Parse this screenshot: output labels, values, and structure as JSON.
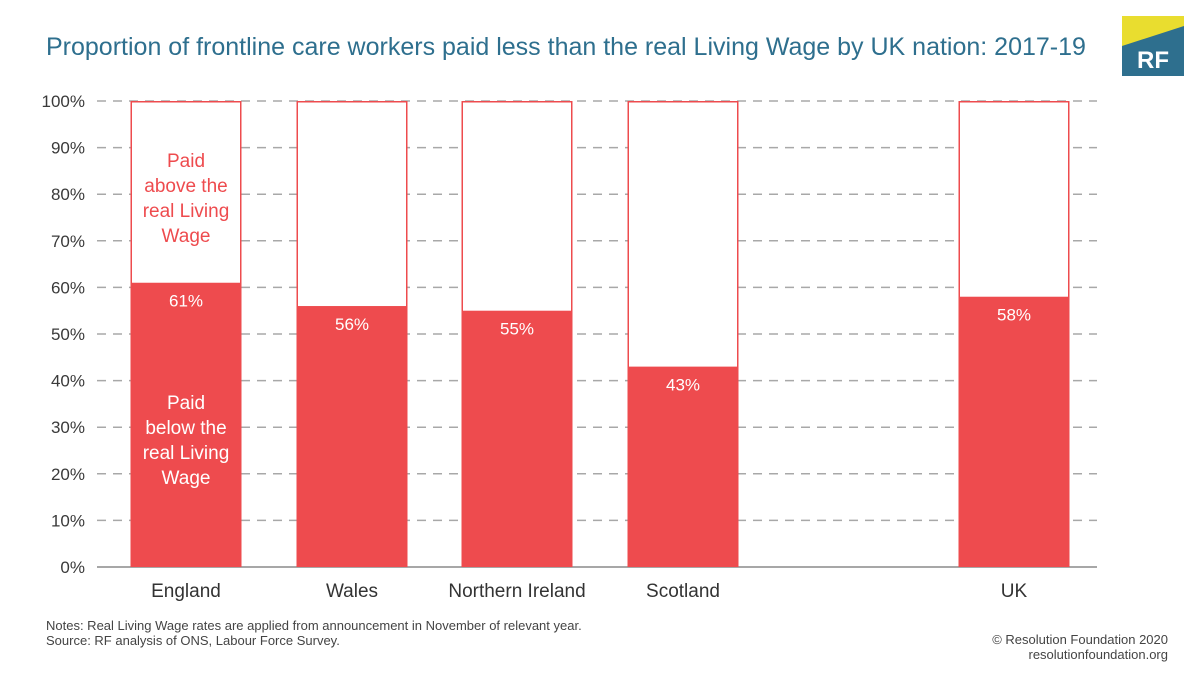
{
  "chart_data": {
    "type": "bar",
    "stacked": true,
    "title": "Proportion of frontline care workers paid less than the real Living Wage by UK nation: 2017-19",
    "categories": [
      "England",
      "Wales",
      "Northern Ireland",
      "Scotland",
      "UK"
    ],
    "series": [
      {
        "name": "Paid below the real Living Wage",
        "values": [
          61,
          56,
          55,
          43,
          58
        ]
      },
      {
        "name": "Paid above the real Living Wage",
        "values": [
          39,
          44,
          45,
          57,
          42
        ]
      }
    ],
    "data_labels": [
      "61%",
      "56%",
      "55%",
      "43%",
      "58%"
    ],
    "yticks": [
      "0%",
      "10%",
      "20%",
      "30%",
      "40%",
      "50%",
      "60%",
      "70%",
      "80%",
      "90%",
      "100%"
    ],
    "ylim": [
      0,
      100
    ],
    "xlabel": "",
    "ylabel": "",
    "grid": "horizontal dashed",
    "annotations": {
      "above": [
        "Paid",
        "above the",
        "real Living",
        "Wage"
      ],
      "below": [
        "Paid",
        "below the",
        "real Living",
        "Wage"
      ]
    },
    "colors": {
      "below": "#ee4b4e",
      "above": "#ffffff",
      "outline": "#ee4b4e",
      "annot_above": "#ee4b4e",
      "annot_below": "#ffffff"
    }
  },
  "logo": {
    "text": "RF",
    "colors": {
      "top": "#e9dd2f",
      "bottom": "#2e6f8e"
    }
  },
  "notes": {
    "line1": "Notes: Real Living Wage rates are applied from announcement in November of relevant year.",
    "line2": "Source: RF analysis of ONS, Labour Force Survey."
  },
  "credit": {
    "line1": "© Resolution Foundation 2020",
    "line2": "resolutionfoundation.org"
  }
}
